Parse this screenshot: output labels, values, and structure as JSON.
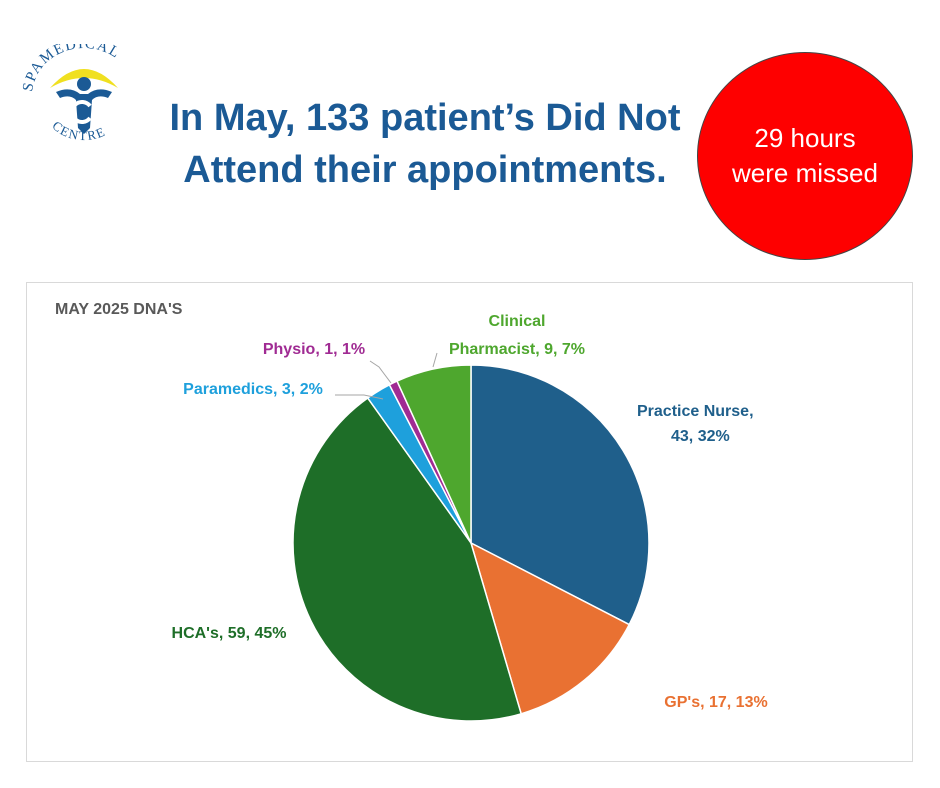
{
  "logo": {
    "top_text": "SPAMEDICAL",
    "bottom_text": "CENTRE"
  },
  "headline": "In May, 133 patient’s Did Not Attend their appointments.",
  "callout": {
    "text": "29 hours were missed",
    "color": "#fe0000"
  },
  "chart_data": {
    "type": "pie",
    "title": "MAY 2025 DNA'S",
    "slices": [
      {
        "name": "Practice Nurse",
        "value": 43,
        "percent": "32%",
        "color": "#1f5f8b",
        "label": [
          "Practice Nurse,",
          "43, 32%"
        ]
      },
      {
        "name": "GP's",
        "value": 17,
        "percent": "13%",
        "color": "#e97132",
        "label": [
          "GP's, 17, 13%"
        ]
      },
      {
        "name": "HCA's",
        "value": 59,
        "percent": "45%",
        "color": "#1e6e28",
        "label": [
          "HCA's, 59, 45%"
        ]
      },
      {
        "name": "Paramedics",
        "value": 3,
        "percent": "2%",
        "color": "#1ea0dc",
        "label": [
          "Paramedics, 3, 2%"
        ]
      },
      {
        "name": "Physio",
        "value": 1,
        "percent": "1%",
        "color": "#a02b93",
        "label": [
          "Physio, 1, 1%"
        ]
      },
      {
        "name": "Clinical Pharmacist",
        "value": 9,
        "percent": "7%",
        "color": "#4ea72e",
        "label": [
          "Clinical",
          "Pharmacist, 9, 7%"
        ]
      }
    ]
  }
}
